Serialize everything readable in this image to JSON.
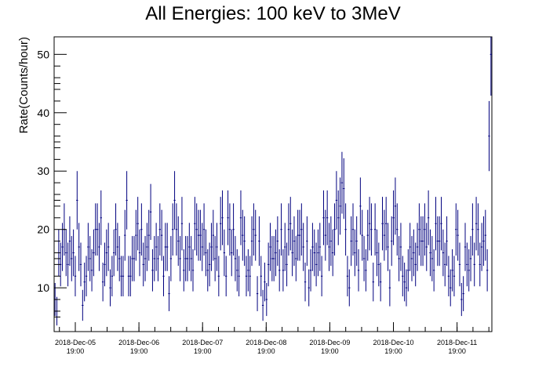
{
  "chart_data": {
    "type": "scatter",
    "title": "All Energies:  100 keV to 3MeV",
    "ylabel": "Rate(Counts/hour)",
    "xlabel": "",
    "ylim": [
      2.5,
      53
    ],
    "grid": false,
    "x_tick_labels": [
      {
        "date": "2018-Dec-05",
        "time": "19:00"
      },
      {
        "date": "2018-Dec-06",
        "time": "19:00"
      },
      {
        "date": "2018-Dec-07",
        "time": "19:00"
      },
      {
        "date": "2018-Dec-08",
        "time": "19:00"
      },
      {
        "date": "2018-Dec-09",
        "time": "19:00"
      },
      {
        "date": "2018-Dec-10",
        "time": "19:00"
      },
      {
        "date": "2018-Dec-11",
        "time": "19:00"
      }
    ],
    "y_ticks": [
      10,
      20,
      30,
      40,
      50
    ],
    "marker_color": "#00007f",
    "series": [
      {
        "values": [
          8,
          6,
          16,
          14,
          17,
          20,
          16,
          14,
          18,
          15,
          16,
          12,
          25,
          17,
          14,
          7,
          11,
          12,
          17,
          15,
          13,
          16,
          20,
          20,
          17,
          22,
          11,
          14,
          16,
          17,
          10,
          12,
          16,
          20,
          17,
          15,
          12,
          12,
          19,
          25,
          12,
          12,
          15,
          15,
          19,
          21,
          16,
          20,
          14,
          15,
          17,
          19,
          23,
          13,
          15,
          17,
          15,
          20,
          19,
          12,
          17,
          17,
          9,
          15,
          20,
          25,
          20,
          18,
          15,
          21,
          13,
          15,
          15,
          17,
          15,
          13,
          21,
          20,
          19,
          19,
          17,
          20,
          16,
          13,
          14,
          17,
          19,
          15,
          17,
          12,
          21,
          22,
          16,
          12,
          22,
          20,
          16,
          20,
          15,
          13,
          12,
          22,
          19,
          18,
          12,
          13,
          12,
          18,
          20,
          19,
          9,
          18,
          12,
          7,
          11,
          8,
          14,
          17,
          15,
          15,
          16,
          18,
          13,
          20,
          13,
          17,
          14,
          20,
          21,
          16,
          18,
          15,
          19,
          19,
          20,
          17,
          11,
          18,
          10,
          13,
          17,
          16,
          14,
          16,
          17,
          12,
          22,
          19,
          22,
          17,
          18,
          16,
          20,
          25,
          22,
          24,
          28,
          27,
          20,
          12,
          10,
          18,
          20,
          16,
          18,
          13,
          24,
          19,
          15,
          13,
          19,
          21,
          20,
          11,
          20,
          16,
          14,
          11,
          21,
          19,
          21,
          17,
          10,
          18,
          22,
          24,
          20,
          15,
          17,
          12,
          11,
          10,
          13,
          17,
          15,
          16,
          14,
          17,
          20,
          18,
          18,
          20,
          17,
          22,
          16,
          15,
          13,
          21,
          18,
          18,
          21,
          16,
          14,
          18,
          12,
          10,
          13,
          12,
          20,
          19,
          14,
          8,
          9,
          17,
          14,
          13,
          15,
          20,
          14,
          21,
          20,
          14,
          17,
          18,
          19,
          13,
          36,
          50
        ]
      }
    ]
  }
}
